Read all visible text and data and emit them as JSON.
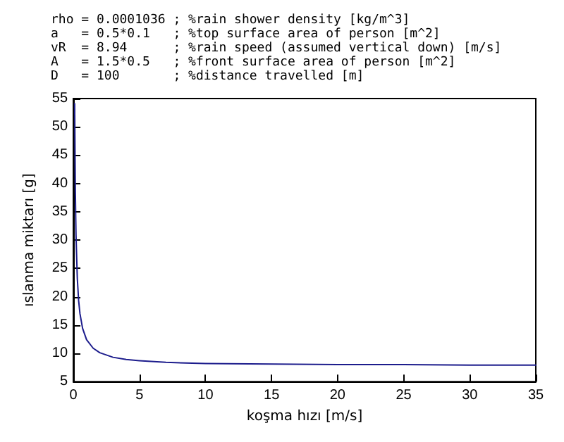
{
  "chart_data": {
    "type": "line",
    "annotations": [
      "rho = 0.0001036 ; %rain shower density [kg/m^3]",
      "a   = 0.5*0.1   ; %top surface area of person [m^2]",
      "vR  = 8.94      ; %rain speed (assumed vertical down) [m/s]",
      "A   = 1.5*0.5   ; %front surface area of person [m^2]",
      "D   = 100       ; %distance travelled [m]"
    ],
    "xlabel": "koşma hızı [m/s]",
    "ylabel": "ıslanma miktarı [g]",
    "x": [
      0.1,
      0.15,
      0.2,
      0.3,
      0.4,
      0.5,
      0.7,
      1,
      1.5,
      2,
      3,
      4,
      5,
      7,
      10,
      15,
      20,
      25,
      30,
      35
    ],
    "series": [
      {
        "color": "#1c1c8c",
        "values": [
          54.1,
          38.6,
          30.9,
          23.2,
          19.3,
          17.0,
          14.4,
          12.4,
          10.9,
          10.1,
          9.3,
          8.9,
          8.7,
          8.4,
          8.2,
          8.1,
          8.0,
          8.0,
          7.9,
          7.9
        ]
      }
    ],
    "xlim": [
      0,
      35
    ],
    "xticks": [
      0,
      5,
      10,
      15,
      20,
      25,
      30,
      35
    ],
    "ylim": [
      5,
      55
    ],
    "yticks": [
      5,
      10,
      15,
      20,
      25,
      30,
      35,
      40,
      45,
      50,
      55
    ],
    "grid": false,
    "marker": "none",
    "line_style": "solid"
  }
}
